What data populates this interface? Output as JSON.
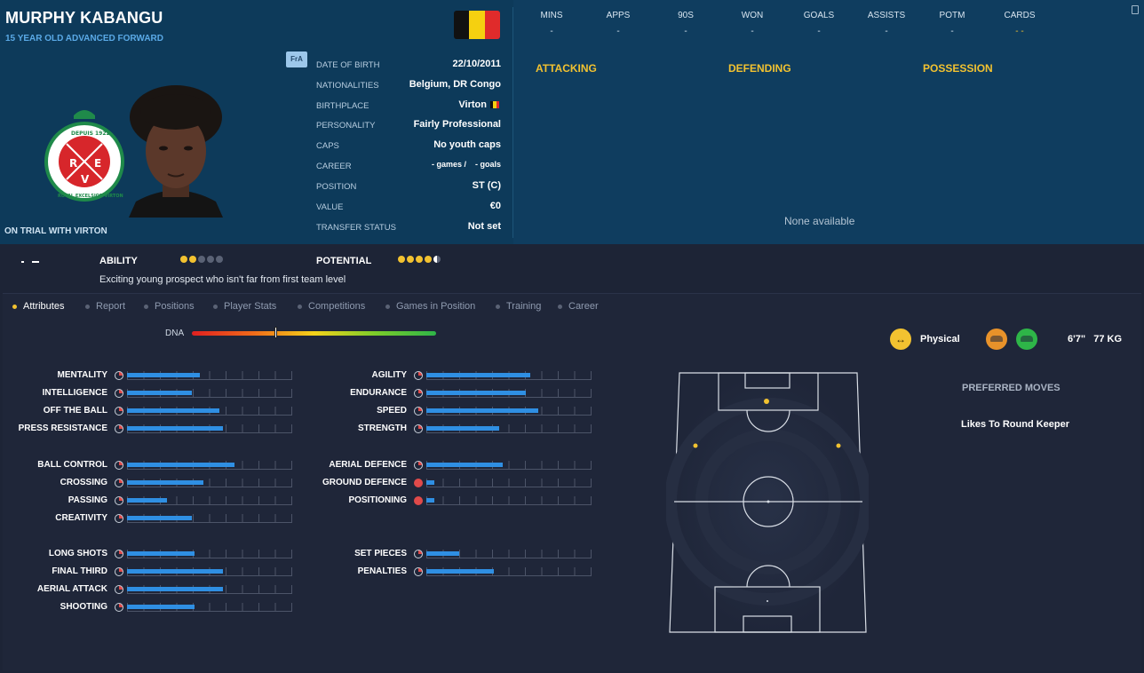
{
  "player": {
    "name": "MURPHY KABANGU",
    "subtitle": "15 YEAR OLD ADVANCED FORWARD",
    "status_note": "ON TRIAL WITH VIRTON",
    "fra_badge": "FrA"
  },
  "club_crest_text": "ROYAL EXCELSIOR VIRTON",
  "club_crest_year": "DEPUIS 1922",
  "club_crest_letters": [
    "R",
    "E",
    "V"
  ],
  "flag_colors": [
    "#111111",
    "#f5d010",
    "#e02b2b"
  ],
  "info": [
    {
      "label": "DATE OF BIRTH",
      "value": "22/10/2011"
    },
    {
      "label": "NATIONALITIES",
      "value": "Belgium, DR Congo"
    },
    {
      "label": "BIRTHPLACE",
      "value": "Virton"
    },
    {
      "label": "PERSONALITY",
      "value": "Fairly Professional"
    },
    {
      "label": "CAPS",
      "value": "No youth caps"
    },
    {
      "label": "CAREER",
      "value": "- games /    - goals"
    },
    {
      "label": "POSITION",
      "value": "ST (C)"
    },
    {
      "label": "VALUE",
      "value": "€0"
    },
    {
      "label": "TRANSFER STATUS",
      "value": "Not set"
    }
  ],
  "stats": [
    {
      "label": "MINS",
      "value": "-"
    },
    {
      "label": "APPS",
      "value": "-"
    },
    {
      "label": "90S",
      "value": "-"
    },
    {
      "label": "WON",
      "value": "-"
    },
    {
      "label": "GOALS",
      "value": "-"
    },
    {
      "label": "ASSISTS",
      "value": "-"
    },
    {
      "label": "POTM",
      "value": "-"
    },
    {
      "label": "CARDS",
      "value": "- -"
    }
  ],
  "categories": [
    "ATTACKING",
    "DEFENDING",
    "POSSESSION"
  ],
  "none_available": "None available",
  "ability": {
    "label": "ABILITY",
    "stars": 2,
    "max": 5
  },
  "potential": {
    "label": "POTENTIAL",
    "stars": 4.5,
    "max": 5
  },
  "prospect_text": "Exciting young prospect who isn't far from first team level",
  "tabs": [
    "Attributes",
    "Report",
    "Positions",
    "Player Stats",
    "Competitions",
    "Games in Position",
    "Training",
    "Career"
  ],
  "active_tab": "Attributes",
  "dna": {
    "label": "DNA",
    "value": 0.34
  },
  "attributes_left": [
    {
      "name": "MENTALITY",
      "value": 0.44
    },
    {
      "name": "INTELLIGENCE",
      "value": 0.39
    },
    {
      "name": "OFF THE BALL",
      "value": 0.56
    },
    {
      "name": "PRESS RESISTANCE",
      "value": 0.58
    },
    {
      "name": "BALL CONTROL",
      "value": 0.65
    },
    {
      "name": "CROSSING",
      "value": 0.46
    },
    {
      "name": "PASSING",
      "value": 0.24
    },
    {
      "name": "CREATIVITY",
      "value": 0.39
    },
    {
      "name": "LONG SHOTS",
      "value": 0.41
    },
    {
      "name": "FINAL THIRD",
      "value": 0.58
    },
    {
      "name": "AERIAL ATTACK",
      "value": 0.58
    },
    {
      "name": "SHOOTING",
      "value": 0.41
    }
  ],
  "attributes_right": [
    {
      "name": "AGILITY",
      "value": 0.63
    },
    {
      "name": "ENDURANCE",
      "value": 0.6
    },
    {
      "name": "SPEED",
      "value": 0.68
    },
    {
      "name": "STRENGTH",
      "value": 0.44
    },
    {
      "name": "AERIAL DEFENCE",
      "value": 0.46
    },
    {
      "name": "GROUND DEFENCE",
      "value": 0.05
    },
    {
      "name": "POSITIONING",
      "value": 0.05
    },
    {
      "name": "SET PIECES",
      "value": 0.2
    },
    {
      "name": "PENALTIES",
      "value": 0.41
    }
  ],
  "physical": {
    "icon": "dumbbell-icon",
    "label": "Physical"
  },
  "height_weight": "6'7\"   77 KG",
  "preferred_moves": {
    "title": "PREFERRED MOVES",
    "value": "Likes To Round Keeper"
  },
  "colors": {
    "accent": "#f2c230",
    "bar": "#2f8fe3",
    "header": "#0d3a5a"
  }
}
